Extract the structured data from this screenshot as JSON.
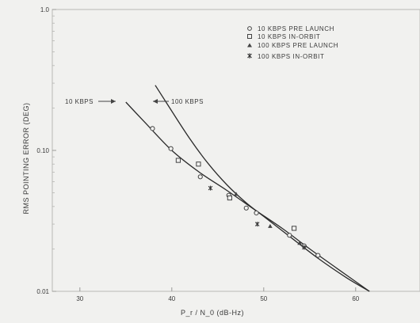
{
  "chart_data": {
    "type": "scatter",
    "xlabel": "P_r / N_0 (dB-Hz)",
    "ylabel": "RMS POINTING ERROR (DEG)",
    "xlim": [
      27,
      67
    ],
    "ylim": [
      0.01,
      1.0
    ],
    "y_scale": "log",
    "x_ticks": [
      30,
      40,
      50,
      60
    ],
    "x_tick_labels": [
      "30",
      "40",
      "50",
      "60"
    ],
    "y_ticks": [
      0.01,
      0.1,
      1.0
    ],
    "y_tick_labels": [
      "0.01",
      "0.10",
      "1.0"
    ],
    "legend_position": "top-right",
    "series": [
      {
        "name": "10 KBPS PRE LAUNCH",
        "marker": "circle",
        "points": [
          {
            "x": 37.9,
            "y": 0.143
          },
          {
            "x": 39.9,
            "y": 0.103
          },
          {
            "x": 43.1,
            "y": 0.065
          },
          {
            "x": 46.2,
            "y": 0.048
          },
          {
            "x": 48.1,
            "y": 0.039
          },
          {
            "x": 49.2,
            "y": 0.036
          },
          {
            "x": 52.8,
            "y": 0.025
          },
          {
            "x": 54.4,
            "y": 0.021
          },
          {
            "x": 55.9,
            "y": 0.018
          }
        ]
      },
      {
        "name": "10 KBPS IN-ORBIT",
        "marker": "square",
        "points": [
          {
            "x": 40.7,
            "y": 0.085
          },
          {
            "x": 42.9,
            "y": 0.08
          },
          {
            "x": 46.3,
            "y": 0.046
          },
          {
            "x": 53.3,
            "y": 0.028
          }
        ]
      },
      {
        "name": "100 KBPS PRE LAUNCH",
        "marker": "triangle",
        "points": [
          {
            "x": 47.0,
            "y": 0.049
          },
          {
            "x": 50.7,
            "y": 0.029
          },
          {
            "x": 53.9,
            "y": 0.022
          }
        ]
      },
      {
        "name": "100 KBPS IN-ORBIT",
        "marker": "star",
        "points": [
          {
            "x": 44.2,
            "y": 0.054
          },
          {
            "x": 49.3,
            "y": 0.03
          },
          {
            "x": 54.4,
            "y": 0.0205
          }
        ]
      }
    ],
    "curves": [
      {
        "label": "10 KBPS",
        "points": [
          {
            "x": 35.0,
            "y": 0.22
          },
          {
            "x": 37.0,
            "y": 0.16
          },
          {
            "x": 40.0,
            "y": 0.1
          },
          {
            "x": 43.0,
            "y": 0.07
          },
          {
            "x": 46.0,
            "y": 0.052
          },
          {
            "x": 49.0,
            "y": 0.038
          },
          {
            "x": 52.0,
            "y": 0.028
          },
          {
            "x": 55.0,
            "y": 0.02
          },
          {
            "x": 58.0,
            "y": 0.0145
          },
          {
            "x": 61.5,
            "y": 0.01
          }
        ]
      },
      {
        "label": "100 KBPS",
        "points": [
          {
            "x": 38.2,
            "y": 0.29
          },
          {
            "x": 40.0,
            "y": 0.19
          },
          {
            "x": 42.0,
            "y": 0.12
          },
          {
            "x": 44.0,
            "y": 0.08
          },
          {
            "x": 46.0,
            "y": 0.057
          },
          {
            "x": 48.0,
            "y": 0.043
          },
          {
            "x": 50.0,
            "y": 0.034
          },
          {
            "x": 53.0,
            "y": 0.024
          },
          {
            "x": 56.0,
            "y": 0.017
          },
          {
            "x": 59.0,
            "y": 0.0125
          },
          {
            "x": 61.5,
            "y": 0.01
          }
        ]
      }
    ]
  }
}
